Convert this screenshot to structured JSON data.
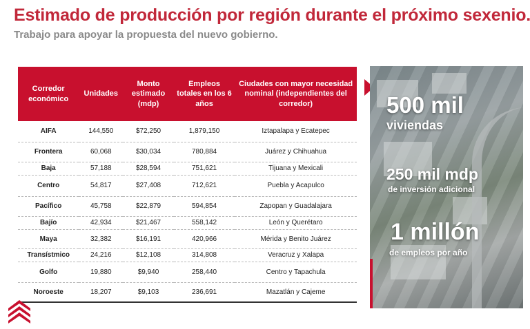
{
  "header": {
    "title": "Estimado de producción por región durante el próximo sexenio.",
    "subtitle": "Trabajo para apoyar la propuesta del nuevo gobierno."
  },
  "table": {
    "columns": [
      "Corredor económico",
      "Unidades",
      "Monto estimado (mdp)",
      "Empleos totales en los 6 años",
      "Ciudades con mayor necesidad nominal (independientes del corredor)"
    ],
    "rows": [
      {
        "corredor": "AIFA",
        "unidades": "144,550",
        "monto": "$72,250",
        "empleos": "1,879,150",
        "ciudades": "Iztapalapa y Ecatepec"
      },
      {
        "corredor": "Frontera",
        "unidades": "60,068",
        "monto": "$30,034",
        "empleos": "780,884",
        "ciudades": "Juárez y Chihuahua"
      },
      {
        "corredor": "Baja",
        "unidades": "57,188",
        "monto": "$28,594",
        "empleos": "751,621",
        "ciudades": "Tijuana y Mexicali"
      },
      {
        "corredor": "Centro",
        "unidades": "54,817",
        "monto": "$27,408",
        "empleos": "712,621",
        "ciudades": "Puebla y Acapulco"
      },
      {
        "corredor": "Pacífico",
        "unidades": "45,758",
        "monto": "$22,879",
        "empleos": "594,854",
        "ciudades": "Zapopan y Guadalajara"
      },
      {
        "corredor": "Bajío",
        "unidades": "42,934",
        "monto": "$21,467",
        "empleos": "558,142",
        "ciudades": "León y Querétaro"
      },
      {
        "corredor": "Maya",
        "unidades": "32,382",
        "monto": "$16,191",
        "empleos": "420,966",
        "ciudades": "Mérida y Benito Juárez"
      },
      {
        "corredor": "Transístmico",
        "unidades": "24,216",
        "monto": "$12,108",
        "empleos": "314,808",
        "ciudades": "Veracruz y Xalapa"
      },
      {
        "corredor": "Golfo",
        "unidades": "19,880",
        "monto": "$9,940",
        "empleos": "258,440",
        "ciudades": "Centro y Tapachula"
      },
      {
        "corredor": "Noroeste",
        "unidades": "18,207",
        "monto": "$9,103",
        "empleos": "236,691",
        "ciudades": "Mazatlán y Cajeme"
      }
    ]
  },
  "stats": [
    {
      "big": "500 mil",
      "small": "viviendas"
    },
    {
      "big": "250 mil mdp",
      "small": "de inversión adicional"
    },
    {
      "big": "1 millón",
      "small": "de empleos por año"
    }
  ],
  "colors": {
    "accent": "#c8102e",
    "title": "#c1283a",
    "subtitle": "#8a8a8a"
  },
  "icons": {
    "logo": "stacked-chevrons-icon",
    "pointer": "triangle-right-icon"
  }
}
